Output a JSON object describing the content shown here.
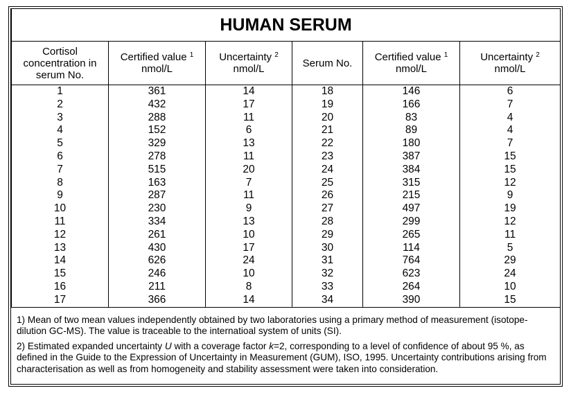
{
  "table": {
    "title": "HUMAN SERUM",
    "headers": [
      {
        "text": "Cortisol concentration in serum No."
      },
      {
        "text": "Certified value",
        "note": "1",
        "unit": "nmol/L"
      },
      {
        "text": "Uncertainty",
        "note": "2",
        "unit": "nmol/L"
      },
      {
        "text": "Serum No."
      },
      {
        "text": "Certified value",
        "note": "1",
        "unit": "nmol/L"
      },
      {
        "text": "Uncertainty",
        "note": "2",
        "unit": "nmol/L"
      }
    ],
    "rows": [
      [
        "1",
        "361",
        "14",
        "18",
        "146",
        "6"
      ],
      [
        "2",
        "432",
        "17",
        "19",
        "166",
        "7"
      ],
      [
        "3",
        "288",
        "11",
        "20",
        "83",
        "4"
      ],
      [
        "4",
        "152",
        "6",
        "21",
        "89",
        "4"
      ],
      [
        "5",
        "329",
        "13",
        "22",
        "180",
        "7"
      ],
      [
        "6",
        "278",
        "11",
        "23",
        "387",
        "15"
      ],
      [
        "7",
        "515",
        "20",
        "24",
        "384",
        "15"
      ],
      [
        "8",
        "163",
        "7",
        "25",
        "315",
        "12"
      ],
      [
        "9",
        "287",
        "11",
        "26",
        "215",
        "9"
      ],
      [
        "10",
        "230",
        "9",
        "27",
        "497",
        "19"
      ],
      [
        "11",
        "334",
        "13",
        "28",
        "299",
        "12"
      ],
      [
        "12",
        "261",
        "10",
        "29",
        "265",
        "11"
      ],
      [
        "13",
        "430",
        "17",
        "30",
        "114",
        "5"
      ],
      [
        "14",
        "626",
        "24",
        "31",
        "764",
        "29"
      ],
      [
        "15",
        "246",
        "10",
        "32",
        "623",
        "24"
      ],
      [
        "16",
        "211",
        "8",
        "33",
        "264",
        "10"
      ],
      [
        "17",
        "366",
        "14",
        "34",
        "390",
        "15"
      ]
    ]
  },
  "footnotes": [
    [
      "1) Mean of two mean values independently obtained by two laboratories using a primary method of measurement (isotope-dilution GC-MS). The value is traceable to the internatioal system of units (SI)."
    ],
    [
      "2) Estimated expanded uncertainty ",
      "U",
      " with a coverage factor ",
      "k",
      "=2, corresponding to a level of confidence of about 95 %, as defined in the Guide to the Expression of Uncertainty in Measurement (GUM), ISO, 1995. Uncertainty contributions arising from characterisation as well as from homogeneity and stability assessment were taken into consideration."
    ]
  ]
}
